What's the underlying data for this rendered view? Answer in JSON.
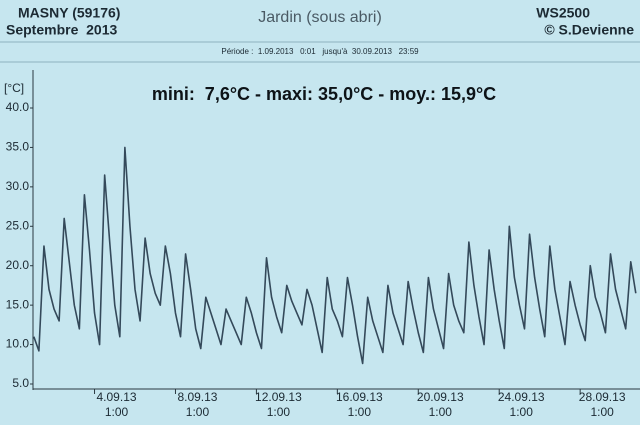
{
  "chart_data": {
    "type": "line",
    "station": "MASNY (59176)",
    "month": "Septembre  2013",
    "title": "Jardin (sous abri)",
    "device": "WS2500",
    "author": "© S.Devienne",
    "subtitle": "Période :  1.09.2013   0:01   jusqu'à  30.09.2013   23:59",
    "annotation": "mini:  7,6°C - maxi: 35,0°C - moy.: 15,9°C",
    "y_label": "[°C]",
    "color": "#34495a",
    "xlim": [
      "1.09.13 0:01",
      "30.09.13 23:59"
    ],
    "ylim": [
      5,
      40
    ],
    "yticks": [
      {
        "value": 5,
        "label": "5.0"
      },
      {
        "value": 10,
        "label": "10.0"
      },
      {
        "value": 15,
        "label": "15.0"
      },
      {
        "value": 20,
        "label": "20.0"
      },
      {
        "value": 25,
        "label": "25.0"
      },
      {
        "value": 30,
        "label": "30.0"
      },
      {
        "value": 35,
        "label": "35.0"
      },
      {
        "value": 40,
        "label": "40.0"
      }
    ],
    "xticks": [
      {
        "value": "4.09.13 1:00",
        "label": [
          "4.09.13",
          "1:00"
        ]
      },
      {
        "value": "8.09.13 1:00",
        "label": [
          "8.09.13",
          "1:00"
        ]
      },
      {
        "value": "12.09.13 1:00",
        "label": [
          "12.09.13",
          "1:00"
        ]
      },
      {
        "value": "16.09.13 1:00",
        "label": [
          "16.09.13",
          "1:00"
        ]
      },
      {
        "value": "20.09.13 1:00",
        "label": [
          "20.09.13",
          "1:00"
        ]
      },
      {
        "value": "24.09.13 1:00",
        "label": [
          "24.09.13",
          "1:00"
        ]
      },
      {
        "value": "28.09.13 1:00",
        "label": [
          "28.09.13",
          "1:00"
        ]
      }
    ],
    "x": [
      "1.09.13 1:00",
      "1.09.13 7:00",
      "1.09.13 13:00",
      "1.09.13 19:00",
      "2.09.13 1:00",
      "2.09.13 7:00",
      "2.09.13 13:00",
      "2.09.13 19:00",
      "3.09.13 1:00",
      "3.09.13 7:00",
      "3.09.13 13:00",
      "3.09.13 19:00",
      "4.09.13 1:00",
      "4.09.13 7:00",
      "4.09.13 13:00",
      "4.09.13 19:00",
      "5.09.13 1:00",
      "5.09.13 7:00",
      "5.09.13 13:00",
      "5.09.13 19:00",
      "6.09.13 1:00",
      "6.09.13 7:00",
      "6.09.13 13:00",
      "6.09.13 19:00",
      "7.09.13 1:00",
      "7.09.13 7:00",
      "7.09.13 13:00",
      "7.09.13 19:00",
      "8.09.13 1:00",
      "8.09.13 7:00",
      "8.09.13 13:00",
      "8.09.13 19:00",
      "9.09.13 1:00",
      "9.09.13 7:00",
      "9.09.13 13:00",
      "9.09.13 19:00",
      "10.09.13 1:00",
      "10.09.13 7:00",
      "10.09.13 13:00",
      "10.09.13 19:00",
      "11.09.13 1:00",
      "11.09.13 7:00",
      "11.09.13 13:00",
      "11.09.13 19:00",
      "12.09.13 1:00",
      "12.09.13 7:00",
      "12.09.13 13:00",
      "12.09.13 19:00",
      "13.09.13 1:00",
      "13.09.13 7:00",
      "13.09.13 13:00",
      "13.09.13 19:00",
      "14.09.13 1:00",
      "14.09.13 7:00",
      "14.09.13 13:00",
      "14.09.13 19:00",
      "15.09.13 1:00",
      "15.09.13 7:00",
      "15.09.13 13:00",
      "15.09.13 19:00",
      "16.09.13 1:00",
      "16.09.13 7:00",
      "16.09.13 13:00",
      "16.09.13 19:00",
      "17.09.13 1:00",
      "17.09.13 7:00",
      "17.09.13 13:00",
      "17.09.13 19:00",
      "18.09.13 1:00",
      "18.09.13 7:00",
      "18.09.13 13:00",
      "18.09.13 19:00",
      "19.09.13 1:00",
      "19.09.13 7:00",
      "19.09.13 13:00",
      "19.09.13 19:00",
      "20.09.13 1:00",
      "20.09.13 7:00",
      "20.09.13 13:00",
      "20.09.13 19:00",
      "21.09.13 1:00",
      "21.09.13 7:00",
      "21.09.13 13:00",
      "21.09.13 19:00",
      "22.09.13 1:00",
      "22.09.13 7:00",
      "22.09.13 13:00",
      "22.09.13 19:00",
      "23.09.13 1:00",
      "23.09.13 7:00",
      "23.09.13 13:00",
      "23.09.13 19:00",
      "24.09.13 1:00",
      "24.09.13 7:00",
      "24.09.13 13:00",
      "24.09.13 19:00",
      "25.09.13 1:00",
      "25.09.13 7:00",
      "25.09.13 13:00",
      "25.09.13 19:00",
      "26.09.13 1:00",
      "26.09.13 7:00",
      "26.09.13 13:00",
      "26.09.13 19:00",
      "27.09.13 1:00",
      "27.09.13 7:00",
      "27.09.13 13:00",
      "27.09.13 19:00",
      "28.09.13 1:00",
      "28.09.13 7:00",
      "28.09.13 13:00",
      "28.09.13 19:00",
      "29.09.13 1:00",
      "29.09.13 7:00",
      "29.09.13 13:00",
      "29.09.13 19:00",
      "30.09.13 1:00",
      "30.09.13 7:00",
      "30.09.13 13:00",
      "30.09.13 19:00"
    ],
    "values": [
      11.0,
      9.2,
      22.5,
      17.0,
      14.5,
      13.0,
      26.0,
      20.5,
      15.0,
      12.0,
      29.0,
      22.0,
      14.0,
      10.0,
      31.5,
      23.0,
      15.0,
      11.0,
      35.0,
      25.0,
      17.0,
      13.0,
      23.5,
      19.0,
      16.5,
      15.0,
      22.5,
      19.0,
      14.0,
      11.0,
      21.5,
      17.0,
      12.0,
      9.5,
      16.0,
      14.0,
      12.0,
      10.0,
      14.5,
      13.0,
      11.5,
      10.0,
      16.0,
      14.0,
      11.5,
      9.5,
      21.0,
      16.0,
      13.5,
      11.5,
      17.5,
      15.5,
      14.0,
      12.5,
      17.0,
      15.0,
      12.0,
      9.0,
      18.5,
      14.5,
      13.0,
      11.0,
      18.5,
      15.0,
      11.0,
      7.6,
      16.0,
      13.0,
      11.0,
      9.0,
      17.5,
      14.0,
      12.0,
      10.0,
      18.0,
      14.5,
      11.5,
      9.0,
      18.5,
      14.5,
      12.0,
      9.5,
      19.0,
      15.0,
      13.0,
      11.5,
      23.0,
      17.5,
      13.5,
      10.0,
      22.0,
      17.0,
      13.0,
      9.5,
      25.0,
      18.5,
      15.0,
      12.0,
      24.0,
      18.5,
      14.5,
      11.0,
      22.5,
      17.0,
      13.5,
      10.0,
      18.0,
      15.0,
      12.5,
      10.5,
      20.0,
      16.0,
      14.0,
      11.5,
      21.5,
      17.0,
      14.5,
      12.0,
      20.5,
      16.5
    ]
  }
}
